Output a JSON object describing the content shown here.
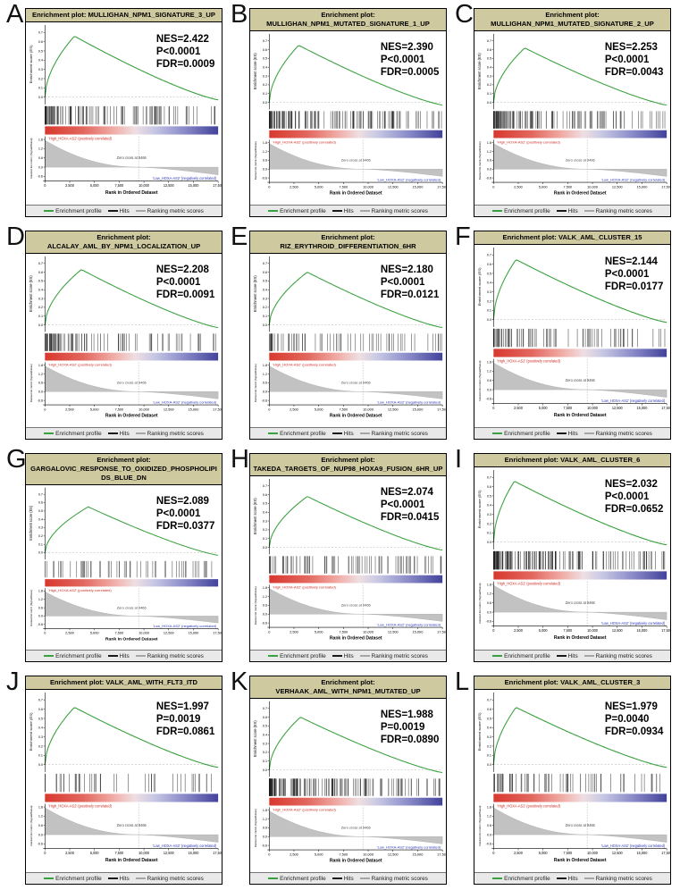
{
  "chart_data": {
    "type": "line",
    "figure_type": "gsea-enrichment-plots",
    "common": {
      "title_prefix": "Enrichment plot:",
      "es_axis_label": "Enrichment score (ES)",
      "metric_axis_label": "Ranked list metric (Signal2Noise)",
      "x_axis_label": "Rank in Ordered Dataset",
      "x_ticks": [
        "0",
        "2,500",
        "5,000",
        "7,500",
        "10,000",
        "12,500",
        "15,000",
        "17,500"
      ],
      "x_max": 17500,
      "es_ticks": [
        0.7,
        0.6,
        0.5,
        0.4,
        0.3,
        0.2,
        0.1,
        0.0
      ],
      "metric_ticks": [
        1.8,
        1.2,
        0.6,
        0.0,
        -0.6
      ],
      "pos_label": "'High_HOXA-AS2' (positively correlated)",
      "neg_label": "'Low_HOXA-AS2' (negatively correlated)",
      "zero_cross_label": "Zero cross at 9466",
      "zero_cross_rank": 9466,
      "legend": [
        {
          "label": "Enrichment profile",
          "color": "#3aa13f"
        },
        {
          "label": "Hits",
          "color": "#1a1a1a"
        },
        {
          "label": "Ranking metric scores",
          "color": "#a6a6a6"
        }
      ],
      "colors": {
        "curve": "#3aa13f",
        "hits": "#1a1a1a",
        "metric_fill": "#c2c2c2",
        "title_bg": "#cfc9a0",
        "panel_border": "#000000",
        "pos_color": "#cc2a21",
        "neg_color": "#2b36b8",
        "gradient": [
          {
            "offset": "0%",
            "color": "#d8382e"
          },
          {
            "offset": "22%",
            "color": "#e2675e"
          },
          {
            "offset": "40%",
            "color": "#f0aea8"
          },
          {
            "offset": "52%",
            "color": "#efdfe2"
          },
          {
            "offset": "63%",
            "color": "#c7c7e4"
          },
          {
            "offset": "80%",
            "color": "#8b8cc9"
          },
          {
            "offset": "100%",
            "color": "#42429b"
          }
        ]
      }
    },
    "panels": [
      {
        "letter": "A",
        "gene_set": "MULLIGHAN_NPM1_SIGNATURE_3_UP",
        "nes": 2.422,
        "p_value": "<0.0001",
        "fdr": 0.0009,
        "nes_label": "NES=2.422",
        "p_label": "P<0.0001",
        "fdr_label": "FDR=0.0009",
        "es_peak": 0.66,
        "peak_pos": 0.17,
        "hits": 120,
        "hit_bias": 2.1,
        "seed": 1
      },
      {
        "letter": "B",
        "gene_set": "MULLIGHAN_NPM1_MUTATED_SIGNATURE_1_UP",
        "nes": 2.39,
        "p_value": "<0.0001",
        "fdr": 0.0005,
        "nes_label": "NES=2.390",
        "p_label": "P<0.0001",
        "fdr_label": "FDR=0.0005",
        "es_peak": 0.65,
        "peak_pos": 0.17,
        "hits": 150,
        "hit_bias": 2.0,
        "seed": 2
      },
      {
        "letter": "C",
        "gene_set": "MULLIGHAN_NPM1_MUTATED_SIGNATURE_2_UP",
        "nes": 2.253,
        "p_value": "<0.0001",
        "fdr": 0.0043,
        "nes_label": "NES=2.253",
        "p_label": "P<0.0001",
        "fdr_label": "FDR=0.0043",
        "es_peak": 0.62,
        "peak_pos": 0.18,
        "hits": 130,
        "hit_bias": 2.0,
        "seed": 3
      },
      {
        "letter": "D",
        "gene_set": "ALCALAY_AML_BY_NPM1_LOCALIZATION_UP",
        "nes": 2.208,
        "p_value": "<0.0001",
        "fdr": 0.0091,
        "nes_label": "NES=2.208",
        "p_label": "P<0.0001",
        "fdr_label": "FDR=0.0091",
        "es_peak": 0.63,
        "peak_pos": 0.21,
        "hits": 95,
        "hit_bias": 1.8,
        "seed": 4
      },
      {
        "letter": "E",
        "gene_set": "RIZ_ERYTHROID_DIFFERENTIATION_6HR",
        "nes": 2.18,
        "p_value": "<0.0001",
        "fdr": 0.0121,
        "nes_label": "NES=2.180",
        "p_label": "P<0.0001",
        "fdr_label": "FDR=0.0121",
        "es_peak": 0.6,
        "peak_pos": 0.22,
        "hits": 70,
        "hit_bias": 1.7,
        "seed": 5
      },
      {
        "letter": "F",
        "gene_set": "VALK_AML_CLUSTER_15",
        "nes": 2.144,
        "p_value": "<0.0001",
        "fdr": 0.0177,
        "nes_label": "NES=2.144",
        "p_label": "P<0.0001",
        "fdr_label": "FDR=0.0177",
        "es_peak": 0.65,
        "peak_pos": 0.13,
        "hits": 85,
        "hit_bias": 2.2,
        "seed": 6
      },
      {
        "letter": "G",
        "gene_set": "GARGALOVIC_RESPONSE_TO_OXIDIZED_PHOSPHOLIPIDS_BLUE_DN",
        "nes": 2.089,
        "p_value": "<0.0001",
        "fdr": 0.0377,
        "nes_label": "NES=2.089",
        "p_label": "P<0.0001",
        "fdr_label": "FDR=0.0377",
        "es_peak": 0.55,
        "peak_pos": 0.25,
        "hits": 60,
        "hit_bias": 1.6,
        "seed": 7
      },
      {
        "letter": "H",
        "gene_set": "TAKEDA_TARGETS_OF_NUP98_HOXA9_FUSION_6HR_UP",
        "nes": 2.074,
        "p_value": "<0.0001",
        "fdr": 0.0415,
        "nes_label": "NES=2.074",
        "p_label": "P<0.0001",
        "fdr_label": "FDR=0.0415",
        "es_peak": 0.58,
        "peak_pos": 0.22,
        "hits": 85,
        "hit_bias": 1.8,
        "seed": 8
      },
      {
        "letter": "I",
        "gene_set": "VALK_AML_CLUSTER_6",
        "nes": 2.032,
        "p_value": "<0.0001",
        "fdr": 0.0652,
        "nes_label": "NES=2.032",
        "p_label": "P<0.0001",
        "fdr_label": "FDR=0.0652",
        "es_peak": 0.66,
        "peak_pos": 0.12,
        "hits": 150,
        "hit_bias": 2.6,
        "seed": 9
      },
      {
        "letter": "J",
        "gene_set": "VALK_AML_WITH_FLT3_ITD",
        "nes": 1.997,
        "p_value": "0.0019",
        "fdr": 0.0861,
        "nes_label": "NES=1.997",
        "p_label": "P=0.0019",
        "fdr_label": "FDR=0.0861",
        "es_peak": 0.62,
        "peak_pos": 0.17,
        "hits": 45,
        "hit_bias": 1.5,
        "seed": 10
      },
      {
        "letter": "K",
        "gene_set": "VERHAAK_AML_WITH_NPM1_MUTATED_UP",
        "nes": 1.988,
        "p_value": "0.0019",
        "fdr": 0.089,
        "nes_label": "NES=1.988",
        "p_label": "P=0.0019",
        "fdr_label": "FDR=0.0890",
        "es_peak": 0.6,
        "peak_pos": 0.18,
        "hits": 160,
        "hit_bias": 2.2,
        "seed": 11
      },
      {
        "letter": "L",
        "gene_set": "VALK_AML_CLUSTER_3",
        "nes": 1.979,
        "p_value": "0.0040",
        "fdr": 0.0934,
        "nes_label": "NES=1.979",
        "p_label": "P=0.0040",
        "fdr_label": "FDR=0.0934",
        "es_peak": 0.62,
        "peak_pos": 0.13,
        "hits": 70,
        "hit_bias": 1.9,
        "seed": 12
      }
    ]
  }
}
